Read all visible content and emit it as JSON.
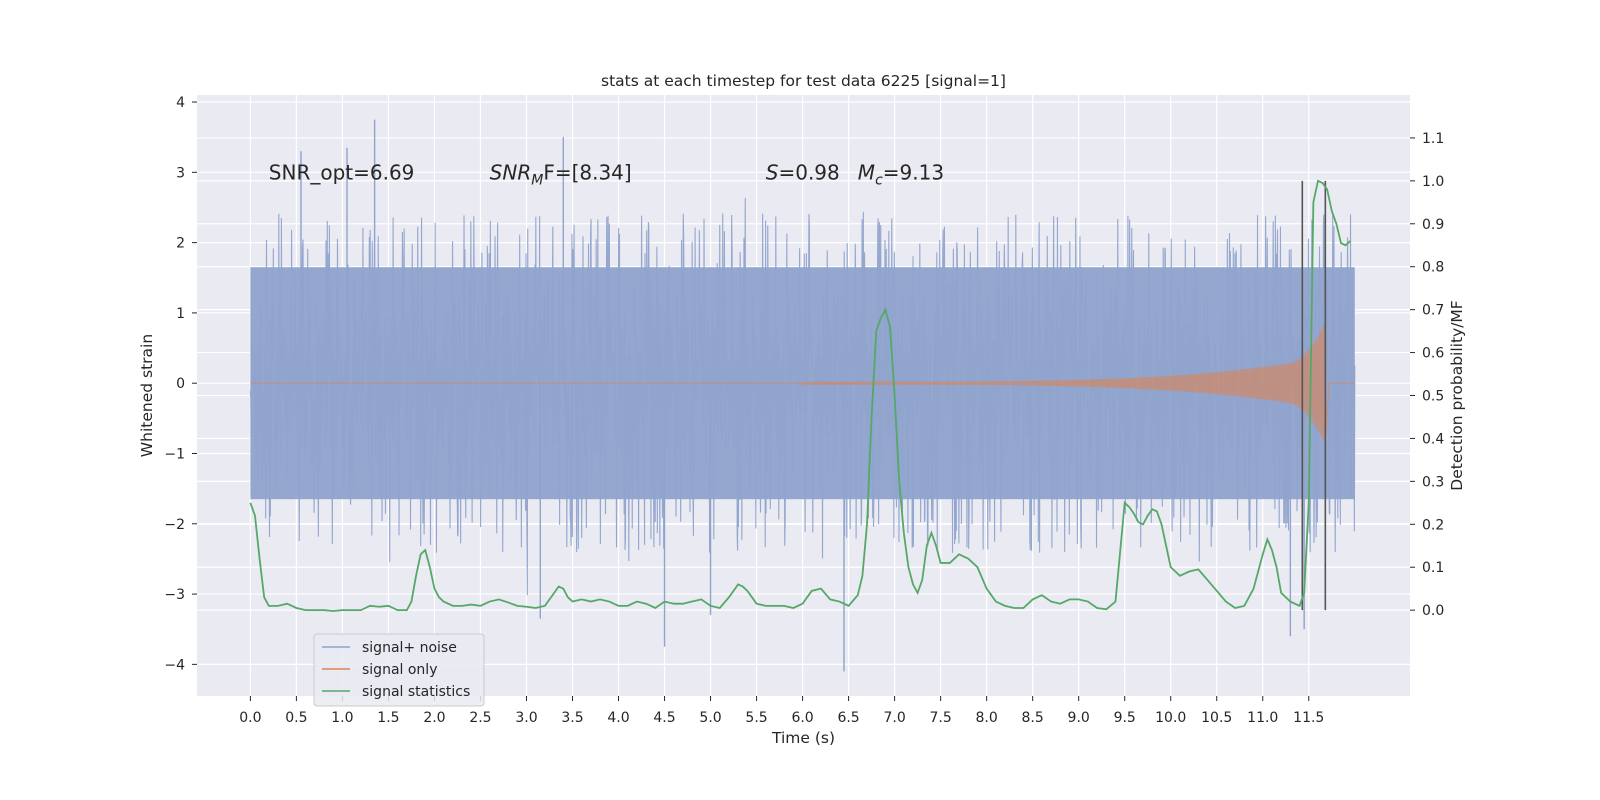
{
  "chart_data": {
    "type": "line",
    "title": "stats at each timestep for test data 6225 [signal=1]",
    "xlabel": "Time (s)",
    "ylabel": "Whitened strain",
    "ylabel_right": "Detection probability/MF",
    "xlim": [
      -0.58,
      12.6
    ],
    "ylim": [
      -4.45,
      4.1
    ],
    "ylim_right": [
      -0.2,
      1.2
    ],
    "x_ticks": [
      0.0,
      0.5,
      1.0,
      1.5,
      2.0,
      2.5,
      3.0,
      3.5,
      4.0,
      4.5,
      5.0,
      5.5,
      6.0,
      6.5,
      7.0,
      7.5,
      8.0,
      8.5,
      9.0,
      9.5,
      10.0,
      10.5,
      11.0,
      11.5
    ],
    "x_tick_labels": [
      "0.0",
      "0.5",
      "1.0",
      "1.5",
      "2.0",
      "2.5",
      "3.0",
      "3.5",
      "4.0",
      "4.5",
      "5.0",
      "5.5",
      "6.0",
      "6.5",
      "7.0",
      "7.5",
      "8.0",
      "8.5",
      "9.0",
      "9.5",
      "10.0",
      "10.5",
      "11.0",
      "11.5"
    ],
    "y_ticks": [
      -4,
      -3,
      -2,
      -1,
      0,
      1,
      2,
      3,
      4
    ],
    "y_tick_labels": [
      "−4",
      "−3",
      "−2",
      "−1",
      "0",
      "1",
      "2",
      "3",
      "4"
    ],
    "y_right_ticks": [
      0.0,
      0.1,
      0.2,
      0.3,
      0.4,
      0.5,
      0.6,
      0.7,
      0.8,
      0.9,
      1.0,
      1.1
    ],
    "y_right_tick_labels": [
      "0.0",
      "0.1",
      "0.2",
      "0.3",
      "0.4",
      "0.5",
      "0.6",
      "0.7",
      "0.8",
      "0.9",
      "1.0",
      "1.1"
    ],
    "grid": true,
    "legend_position": "lower-left",
    "colors": {
      "noise": "#8fa3cc",
      "signal": "#dd8452",
      "stats": "#55a868",
      "markers": "#555555",
      "plot_bg": "#eaeaf2",
      "grid": "#ffffff"
    },
    "annotations": [
      {
        "text": "SNR_opt=6.69",
        "x": 0.2,
        "y": 2.9
      },
      {
        "base": "SNR",
        "sub": "M",
        "tail": "F=[8.34]",
        "x": 2.6,
        "y": 2.9
      },
      {
        "base": "S",
        "sub": "",
        "tail": "=0.98",
        "x": 5.6,
        "y": 2.9
      },
      {
        "base": "M",
        "sub": "c",
        "tail": "=9.13",
        "x": 6.6,
        "y": 2.9
      }
    ],
    "noise_envelope": {
      "x_start": 0.0,
      "x_end": 12.0,
      "dense_band": [
        -1.65,
        1.65
      ],
      "typical_peak": [
        -2.3,
        2.3
      ],
      "notable_peaks": [
        {
          "x": 1.35,
          "y": 3.75
        },
        {
          "x": 3.4,
          "y": 3.5
        },
        {
          "x": 1.05,
          "y": 3.35
        },
        {
          "x": 0.55,
          "y": 3.3
        },
        {
          "x": 4.5,
          "y": -3.75
        },
        {
          "x": 6.45,
          "y": -4.1
        },
        {
          "x": 11.3,
          "y": -3.6
        },
        {
          "x": 3.15,
          "y": -3.35
        },
        {
          "x": 5.0,
          "y": -3.3
        },
        {
          "x": 11.45,
          "y": -3.5
        }
      ]
    },
    "signal_chirp": {
      "x_start": 6.0,
      "x_merger": 11.68,
      "x_end": 12.0,
      "peak_amplitude": [
        -0.72,
        1.12
      ]
    },
    "series": [
      {
        "name": "signal+ noise",
        "kind": "noise"
      },
      {
        "name": "signal only",
        "kind": "signal"
      },
      {
        "name": "signal statistics",
        "kind": "stats",
        "axis": "right",
        "x": [
          0.0,
          0.05,
          0.1,
          0.15,
          0.2,
          0.25,
          0.3,
          0.4,
          0.5,
          0.6,
          0.7,
          0.8,
          0.9,
          1.0,
          1.1,
          1.2,
          1.3,
          1.4,
          1.5,
          1.6,
          1.7,
          1.75,
          1.8,
          1.85,
          1.9,
          1.95,
          2.0,
          2.05,
          2.1,
          2.2,
          2.3,
          2.4,
          2.5,
          2.6,
          2.7,
          2.8,
          2.9,
          3.0,
          3.1,
          3.2,
          3.3,
          3.35,
          3.4,
          3.45,
          3.5,
          3.6,
          3.7,
          3.8,
          3.9,
          4.0,
          4.1,
          4.2,
          4.3,
          4.4,
          4.5,
          4.6,
          4.7,
          4.8,
          4.9,
          5.0,
          5.1,
          5.2,
          5.3,
          5.35,
          5.4,
          5.5,
          5.6,
          5.7,
          5.8,
          5.9,
          6.0,
          6.1,
          6.2,
          6.3,
          6.4,
          6.5,
          6.6,
          6.65,
          6.7,
          6.75,
          6.8,
          6.85,
          6.9,
          6.95,
          7.0,
          7.05,
          7.1,
          7.15,
          7.2,
          7.25,
          7.3,
          7.35,
          7.4,
          7.45,
          7.5,
          7.6,
          7.7,
          7.8,
          7.9,
          8.0,
          8.1,
          8.2,
          8.3,
          8.4,
          8.5,
          8.6,
          8.7,
          8.8,
          8.9,
          9.0,
          9.1,
          9.2,
          9.3,
          9.4,
          9.5,
          9.55,
          9.6,
          9.65,
          9.7,
          9.75,
          9.8,
          9.85,
          9.9,
          9.95,
          10.0,
          10.1,
          10.2,
          10.3,
          10.4,
          10.5,
          10.6,
          10.7,
          10.8,
          10.9,
          11.0,
          11.05,
          11.1,
          11.15,
          11.2,
          11.3,
          11.4,
          11.45,
          11.5,
          11.55,
          11.6,
          11.65,
          11.7,
          11.75,
          11.8,
          11.85,
          11.9,
          11.95
        ],
        "y": [
          0.25,
          0.22,
          0.12,
          0.03,
          0.01,
          0.01,
          0.01,
          0.015,
          0.005,
          0.0,
          0.0,
          0.0,
          -0.002,
          0.0,
          0.0,
          0.0,
          0.01,
          0.008,
          0.01,
          0.0,
          0.0,
          0.02,
          0.08,
          0.13,
          0.14,
          0.1,
          0.05,
          0.03,
          0.02,
          0.01,
          0.01,
          0.013,
          0.01,
          0.02,
          0.025,
          0.018,
          0.01,
          0.008,
          0.005,
          0.01,
          0.04,
          0.055,
          0.05,
          0.03,
          0.02,
          0.025,
          0.02,
          0.025,
          0.02,
          0.01,
          0.01,
          0.02,
          0.015,
          0.005,
          0.02,
          0.015,
          0.015,
          0.02,
          0.025,
          0.01,
          0.005,
          0.03,
          0.06,
          0.055,
          0.045,
          0.015,
          0.01,
          0.01,
          0.01,
          0.005,
          0.015,
          0.045,
          0.05,
          0.025,
          0.02,
          0.01,
          0.035,
          0.08,
          0.2,
          0.45,
          0.65,
          0.68,
          0.7,
          0.66,
          0.5,
          0.3,
          0.18,
          0.1,
          0.06,
          0.04,
          0.07,
          0.15,
          0.18,
          0.15,
          0.11,
          0.11,
          0.13,
          0.12,
          0.1,
          0.05,
          0.02,
          0.01,
          0.005,
          0.005,
          0.025,
          0.035,
          0.02,
          0.015,
          0.025,
          0.025,
          0.02,
          0.005,
          0.002,
          0.02,
          0.25,
          0.24,
          0.225,
          0.205,
          0.2,
          0.22,
          0.235,
          0.23,
          0.2,
          0.15,
          0.1,
          0.08,
          0.09,
          0.095,
          0.07,
          0.045,
          0.02,
          0.005,
          0.01,
          0.05,
          0.13,
          0.165,
          0.14,
          0.1,
          0.04,
          0.02,
          0.01,
          0.04,
          0.25,
          0.95,
          1.0,
          0.995,
          0.98,
          0.93,
          0.9,
          0.855,
          0.85,
          0.86
        ]
      }
    ],
    "vertical_markers": [
      {
        "x": 11.43,
        "y_from": 0.0,
        "y_to": 1.0
      },
      {
        "x": 11.68,
        "y_from": 0.0,
        "y_to": 1.0
      }
    ]
  }
}
